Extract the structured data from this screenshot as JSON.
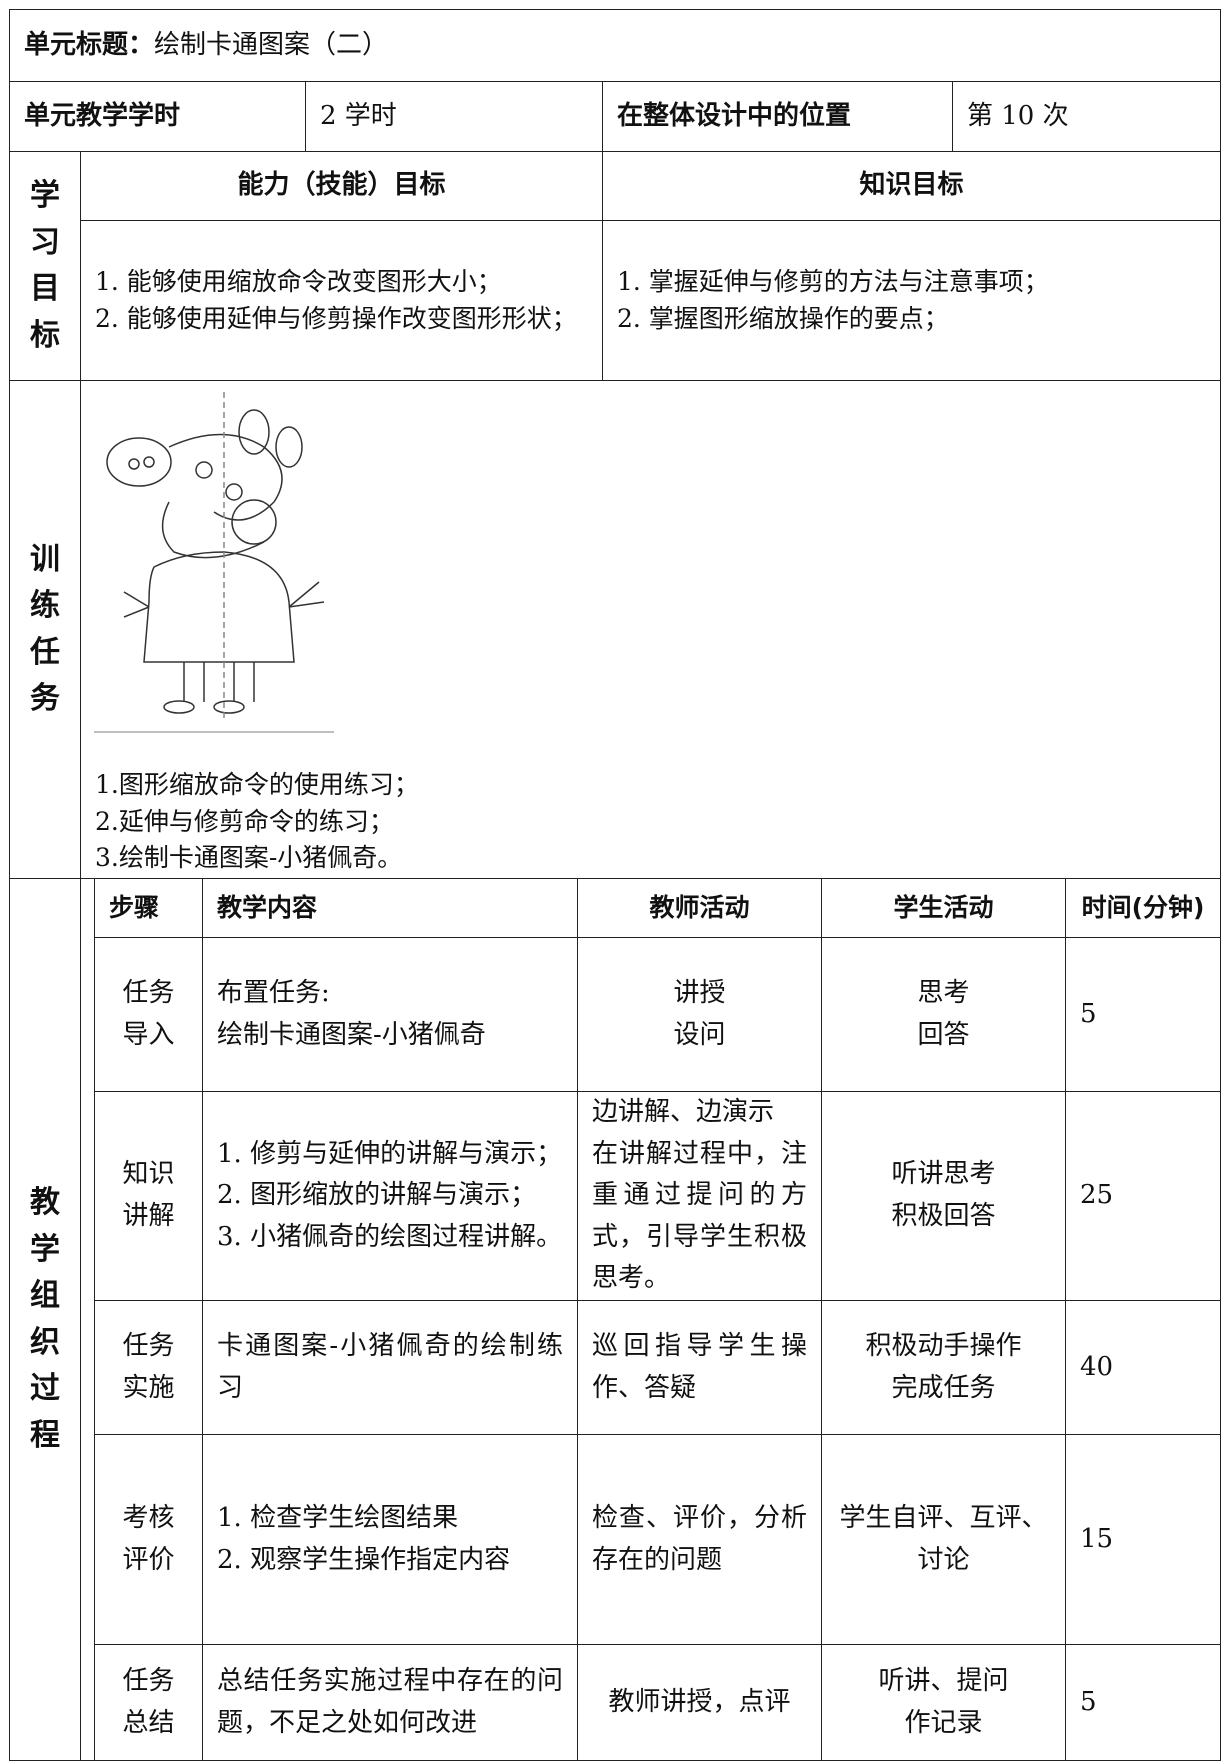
{
  "header": {
    "unit_title_label": "单元标题：",
    "unit_title": "绘制卡通图案（二）",
    "hours_label": "单元教学学时",
    "hours": "2 学时",
    "position_label": "在整体设计中的位置",
    "position": "第 10 次"
  },
  "objectives": {
    "label": "学习目标",
    "ability_header": "能力（技能）目标",
    "knowledge_header": "知识目标",
    "ability": [
      "1. 能够使用缩放命令改变图形大小；",
      "2. 能够使用延伸与修剪操作改变图形形状；"
    ],
    "knowledge": [
      "1. 掌握延伸与修剪的方法与注意事项；",
      "2. 掌握图形缩放操作的要点；"
    ]
  },
  "training": {
    "label": "训练任务",
    "items": [
      "1.图形缩放命令的使用练习；",
      "2.延伸与修剪命令的练习；",
      "3.绘制卡通图案-小猪佩奇。"
    ]
  },
  "process": {
    "label": "教学组织过程",
    "columns": [
      "步骤",
      "教学内容",
      "教师活动",
      "学生活动",
      "时间(分钟)"
    ],
    "rows": [
      [
        "任务\n导入",
        "布置任务:\n绘制卡通图案-小猪佩奇",
        "讲授\n设问",
        "思考\n回答",
        "5"
      ],
      [
        "知识\n讲解",
        "1. 修剪与延伸的讲解与演示；\n2. 图形缩放的讲解与演示；\n3. 小猪佩奇的绘图过程讲解。",
        "边讲解、边演示\n在讲解过程中，注重通过提问的方式，引导学生积极思考。",
        "听讲思考\n积极回答",
        "25"
      ],
      [
        "任务\n实施",
        "卡通图案-小猪佩奇的绘制练习",
        "巡回指导学生操作、答疑",
        "积极动手操作\n完成任务",
        "40"
      ],
      [
        "考核\n评价",
        "1. 检查学生绘图结果\n2. 观察学生操作指定内容",
        "检查、评价，分析存在的问题",
        "学生自评、互评、讨论",
        "15"
      ],
      [
        "任务\n总结",
        "总结任务实施过程中存在的问题，不足之处如何改进",
        "教师讲授，点评",
        "听讲、提问\n作记录",
        "5"
      ]
    ]
  }
}
